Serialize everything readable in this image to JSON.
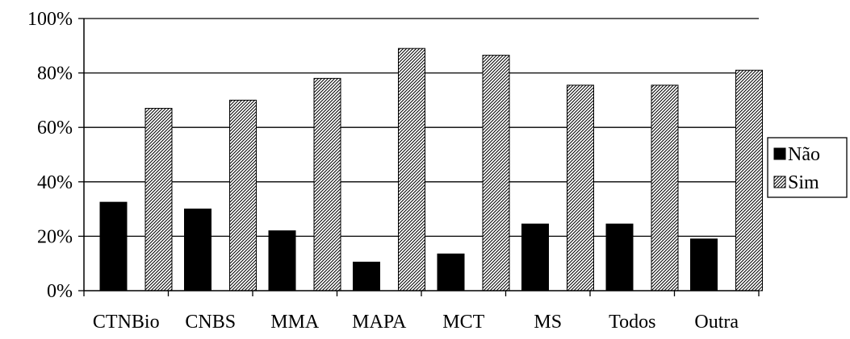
{
  "chart_data": {
    "type": "bar",
    "categories": [
      "CTNBio",
      "CNBS",
      "MMA",
      "MAPA",
      "MCT",
      "MS",
      "Todos",
      "Outra"
    ],
    "series": [
      {
        "name": "Não",
        "values": [
          32.5,
          30,
          22,
          10.5,
          13.5,
          24.5,
          24.5,
          19
        ],
        "color": "#000000",
        "pattern": "solid"
      },
      {
        "name": "Sim",
        "values": [
          67,
          70,
          78,
          89,
          86.5,
          75.5,
          75.5,
          81
        ],
        "color": "#000000",
        "pattern": "diagonal-hatch"
      }
    ],
    "y_ticks": [
      "0%",
      "20%",
      "40%",
      "60%",
      "80%",
      "100%"
    ],
    "ylim": [
      0,
      100
    ],
    "grid": true,
    "legend_position": "right",
    "title": "",
    "xlabel": "",
    "ylabel": ""
  }
}
